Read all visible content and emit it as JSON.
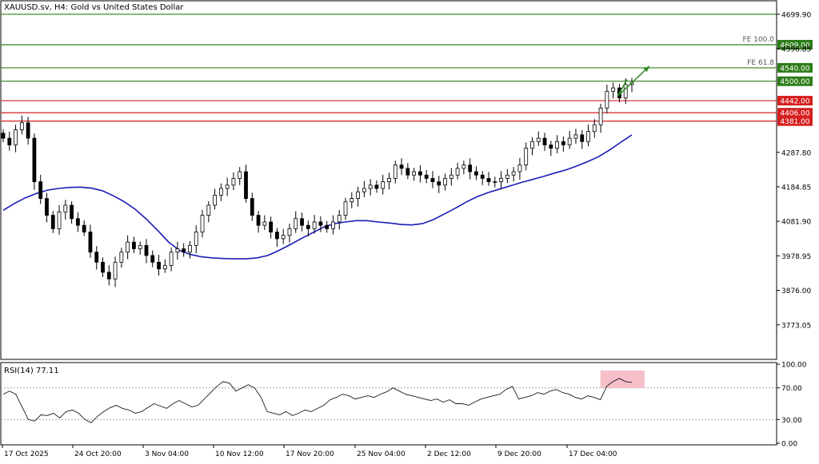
{
  "chart_data": {
    "type": "candlestick",
    "symbol": "XAUUSD.sv",
    "timeframe": "H4",
    "title": "XAUUSD.sv, H4:  Gold vs United States Dollar",
    "price_axis": {
      "ylim": [
        3670,
        4740
      ],
      "ticks": [
        "4699.90",
        "4596.85",
        "4287.80",
        "4184.85",
        "4081.90",
        "3978.95",
        "3876.00",
        "3773.05"
      ]
    },
    "time_axis": {
      "labels": [
        "17 Oct 2025",
        "24 Oct 20:00",
        "3 Nov 04:00",
        "10 Nov 12:00",
        "17 Nov 20:00",
        "25 Nov 04:00",
        "2 Dec 12:00",
        "9 Dec 20:00",
        "17 Dec 04:00"
      ]
    },
    "key_levels": [
      {
        "value": 4699.9,
        "label": "",
        "color": "#2e7d1a"
      },
      {
        "value": 4609.0,
        "label": "4609.00",
        "color": "#2e7d1a",
        "annotation": "FE 100.0"
      },
      {
        "value": 4540.0,
        "label": "4540.00",
        "color": "#2e7d1a",
        "annotation": "FE 61.8"
      },
      {
        "value": 4500.0,
        "label": "4500.00",
        "color": "#2e7d1a",
        "annotation": ""
      },
      {
        "value": 4442.0,
        "label": "4442.00",
        "color": "#d61f1f",
        "annotation": ""
      },
      {
        "value": 4406.0,
        "label": "4406.00",
        "color": "#d61f1f",
        "annotation": ""
      },
      {
        "value": 4381.0,
        "label": "4381.00",
        "color": "#d61f1f",
        "annotation": ""
      }
    ],
    "price_series": [
      4330,
      4310,
      4355,
      4376,
      4330,
      4200,
      4150,
      4100,
      4060,
      4110,
      4130,
      4090,
      4070,
      4050,
      3990,
      3960,
      3930,
      3910,
      3960,
      3990,
      4020,
      4000,
      4010,
      3980,
      3960,
      3940,
      3950,
      3990,
      4000,
      3990,
      4010,
      4050,
      4100,
      4130,
      4160,
      4180,
      4190,
      4210,
      4230,
      4150,
      4100,
      4070,
      4080,
      4050,
      4030,
      4040,
      4060,
      4090,
      4070,
      4060,
      4080,
      4070,
      4060,
      4080,
      4100,
      4140,
      4150,
      4170,
      4180,
      4190,
      4180,
      4200,
      4210,
      4250,
      4240,
      4220,
      4230,
      4220,
      4210,
      4200,
      4190,
      4210,
      4220,
      4240,
      4250,
      4230,
      4220,
      4210,
      4200,
      4200,
      4210,
      4220,
      4230,
      4250,
      4300,
      4320,
      4330,
      4310,
      4300,
      4320,
      4310,
      4330,
      4340,
      4320,
      4350,
      4370,
      4420,
      4470,
      4480,
      4450,
      4490,
      4495
    ],
    "ma_series": [
      4115,
      4135,
      4152,
      4165,
      4175,
      4180,
      4183,
      4184,
      4181,
      4173,
      4158,
      4140,
      4117,
      4088,
      4055,
      4020,
      3995,
      3983,
      3976,
      3973,
      3971,
      3970,
      3970,
      3973,
      3980,
      3995,
      4012,
      4030,
      4047,
      4064,
      4075,
      4080,
      4084,
      4084,
      4080,
      4077,
      4073,
      4071,
      4075,
      4087,
      4104,
      4121,
      4140,
      4156,
      4168,
      4178,
      4188,
      4198,
      4207,
      4216,
      4226,
      4235,
      4247,
      4260,
      4275,
      4295,
      4318,
      4340
    ],
    "rsi": {
      "label": "RSI(14) 77.11",
      "period": 14,
      "current": 77.11,
      "ylim": [
        0,
        100
      ],
      "ticks": [
        "100.00",
        "70.00",
        "30.00",
        "0.00"
      ],
      "levels": [
        70,
        30
      ],
      "values": [
        62,
        66,
        62,
        46,
        30,
        28,
        36,
        35,
        38,
        32,
        40,
        42,
        38,
        30,
        26,
        34,
        40,
        45,
        48,
        44,
        42,
        38,
        40,
        45,
        50,
        47,
        44,
        50,
        54,
        50,
        46,
        48,
        56,
        64,
        72,
        78,
        76,
        66,
        70,
        74,
        70,
        58,
        40,
        38,
        36,
        40,
        35,
        38,
        42,
        40,
        44,
        48,
        55,
        58,
        62,
        60,
        56,
        58,
        60,
        58,
        62,
        65,
        70,
        66,
        62,
        60,
        58,
        56,
        54,
        56,
        52,
        55,
        50,
        50,
        48,
        52,
        56,
        58,
        60,
        62,
        68,
        72,
        56,
        58,
        60,
        64,
        62,
        66,
        68,
        64,
        62,
        58,
        56,
        60,
        58,
        55,
        72,
        78,
        82,
        78,
        77
      ]
    }
  }
}
